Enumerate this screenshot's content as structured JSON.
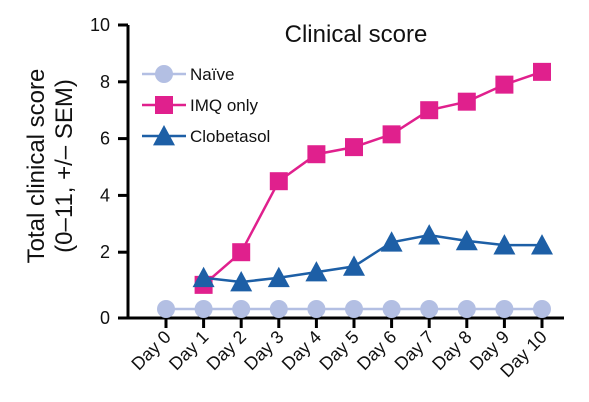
{
  "chart_data": {
    "type": "line",
    "title": "Clinical score",
    "ylabel_lines": [
      "Total clinical score",
      "(0–11, +/– SEM)"
    ],
    "xlabel": "",
    "categories": [
      "Day 0",
      "Day 1",
      "Day 2",
      "Day 3",
      "Day 4",
      "Day 5",
      "Day 6",
      "Day 7",
      "Day 8",
      "Day 9",
      "Day 10"
    ],
    "ylim": [
      0,
      10
    ],
    "yticks": [
      0,
      2,
      4,
      6,
      8,
      10
    ],
    "grid": false,
    "legend_position": "top-left",
    "series": [
      {
        "name": "Naïve",
        "marker": "circle",
        "color": "#b3bfe3",
        "values": [
          0,
          0,
          0,
          0,
          0,
          0,
          0,
          0,
          0,
          0,
          0
        ]
      },
      {
        "name": "IMQ only",
        "marker": "square",
        "color": "#e0208d",
        "values": [
          null,
          0.85,
          2.0,
          4.5,
          5.45,
          5.7,
          6.15,
          7.0,
          7.3,
          7.9,
          8.35
        ]
      },
      {
        "name": "Clobetasol",
        "marker": "triangle",
        "color": "#1d5fa6",
        "values": [
          null,
          1.1,
          0.95,
          1.1,
          1.3,
          1.5,
          2.35,
          2.6,
          2.4,
          2.25,
          2.25
        ]
      }
    ]
  }
}
